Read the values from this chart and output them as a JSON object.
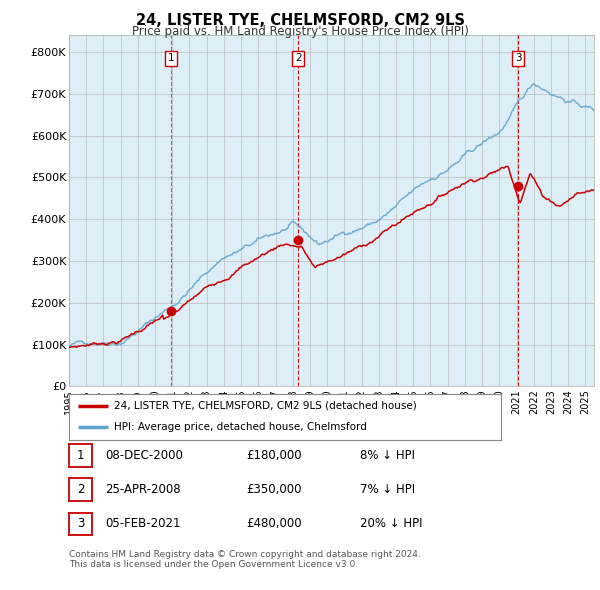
{
  "title": "24, LISTER TYE, CHELMSFORD, CM2 9LS",
  "subtitle": "Price paid vs. HM Land Registry's House Price Index (HPI)",
  "ylabel_ticks": [
    "£0",
    "£100K",
    "£200K",
    "£300K",
    "£400K",
    "£500K",
    "£600K",
    "£700K",
    "£800K"
  ],
  "ytick_vals": [
    0,
    100000,
    200000,
    300000,
    400000,
    500000,
    600000,
    700000,
    800000
  ],
  "ylim": [
    0,
    840000
  ],
  "xlim_start": 1995.0,
  "xlim_end": 2025.5,
  "hpi_color": "#5ba3cc",
  "price_color": "#cc0000",
  "chart_bg_color": "#ddeef7",
  "sale_dates": [
    2000.93,
    2008.32,
    2021.09
  ],
  "sale_prices": [
    180000,
    350000,
    480000
  ],
  "sale_labels": [
    "1",
    "2",
    "3"
  ],
  "legend_label_red": "24, LISTER TYE, CHELMSFORD, CM2 9LS (detached house)",
  "legend_label_blue": "HPI: Average price, detached house, Chelmsford",
  "table_rows": [
    {
      "num": "1",
      "date": "08-DEC-2000",
      "price": "£180,000",
      "pct": "8% ↓ HPI"
    },
    {
      "num": "2",
      "date": "25-APR-2008",
      "price": "£350,000",
      "pct": "7% ↓ HPI"
    },
    {
      "num": "3",
      "date": "05-FEB-2021",
      "price": "£480,000",
      "pct": "20% ↓ HPI"
    }
  ],
  "footnote1": "Contains HM Land Registry data © Crown copyright and database right 2024.",
  "footnote2": "This data is licensed under the Open Government Licence v3.0.",
  "background_color": "#ffffff",
  "grid_color": "#bbbbbb"
}
